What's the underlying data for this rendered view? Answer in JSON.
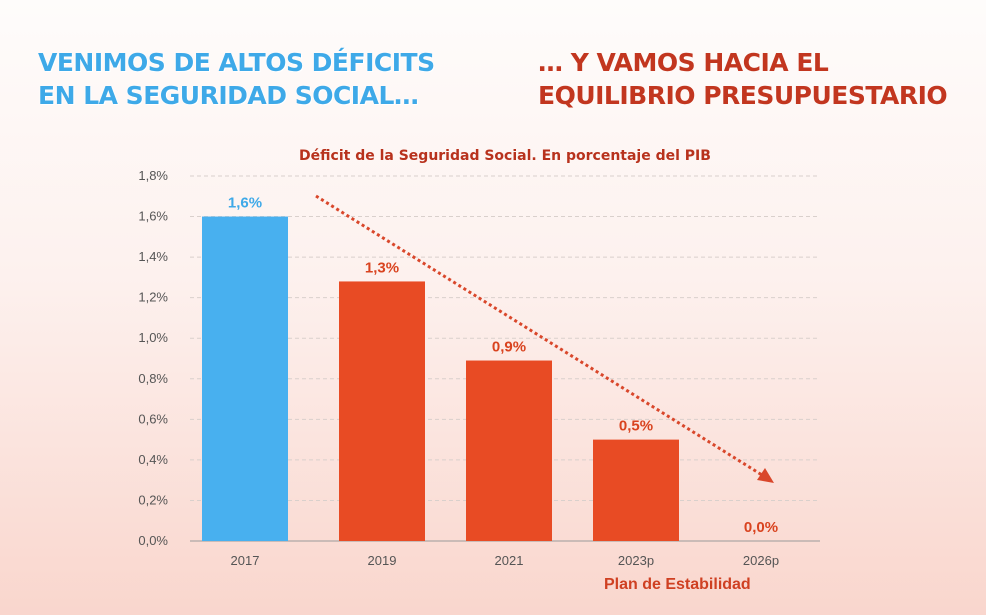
{
  "headline_left": {
    "line1": "VENIMOS DE ALTOS DÉFICITS",
    "line2": "EN LA SEGURIDAD SOCIAL…"
  },
  "headline_right": {
    "line1": "… Y VAMOS HACIA EL",
    "line2": "EQUILIBRIO PRESUPUESTARIO"
  },
  "footnote": "Plan de Estabilidad",
  "chart_data": {
    "type": "bar",
    "title": "Déficit de la Seguridad Social. En porcentaje del PIB",
    "categories": [
      "2017",
      "2019",
      "2021",
      "2023p",
      "2026p"
    ],
    "values": [
      1.6,
      1.28,
      0.89,
      0.5,
      0.0
    ],
    "data_labels": [
      "1,6%",
      "1,3%",
      "0,9%",
      "0,5%",
      "0,0%"
    ],
    "ylim": [
      0,
      1.8
    ],
    "yticks": [
      "0,0%",
      "0,2%",
      "0,4%",
      "0,6%",
      "0,8%",
      "1,0%",
      "1,2%",
      "1,4%",
      "1,6%",
      "1,8%"
    ],
    "grid": true,
    "annotation": "dotted downward trend arrow",
    "colors": {
      "historic": "#48b0ef",
      "projected": "#e84b24",
      "label_historic": "#3ea9e8",
      "label_projected": "#d9431f"
    }
  }
}
